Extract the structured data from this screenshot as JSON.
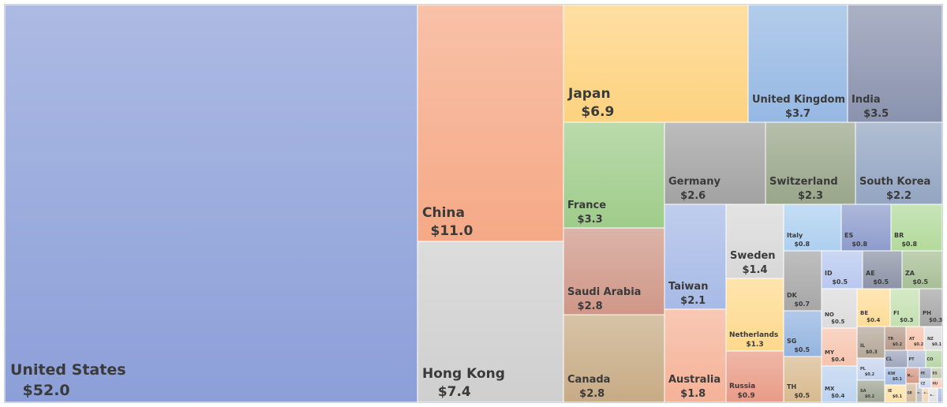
{
  "chart_data": {
    "type": "treemap",
    "title": "",
    "unit_prefix": "$",
    "items": [
      {
        "name": "United States",
        "value": 52.0,
        "label": "$52.0",
        "color": "#8c9fd8"
      },
      {
        "name": "China",
        "value": 11.0,
        "label": "$11.0",
        "color": "#f5a986"
      },
      {
        "name": "Hong Kong",
        "value": 7.4,
        "label": "$7.4",
        "color": "#cfcfcf"
      },
      {
        "name": "Japan",
        "value": 6.9,
        "label": "$6.9",
        "color": "#fdd27f"
      },
      {
        "name": "United Kingdom",
        "value": 3.7,
        "label": "$3.7",
        "color": "#95b8e3"
      },
      {
        "name": "India",
        "value": 3.5,
        "label": "$3.5",
        "color": "#8a93ae"
      },
      {
        "name": "France",
        "value": 3.3,
        "label": "$3.3",
        "color": "#9fcc8a"
      },
      {
        "name": "Saudi Arabia",
        "value": 2.8,
        "label": "$2.8",
        "color": "#cf9788"
      },
      {
        "name": "Canada",
        "value": 2.8,
        "label": "$2.8",
        "color": "#c7ab85"
      },
      {
        "name": "Germany",
        "value": 2.6,
        "label": "$2.6",
        "color": "#a2a2a2"
      },
      {
        "name": "Switzerland",
        "value": 2.3,
        "label": "$2.3",
        "color": "#99a68a"
      },
      {
        "name": "South Korea",
        "value": 2.2,
        "label": "$2.2",
        "color": "#93a5c2"
      },
      {
        "name": "Taiwan",
        "value": 2.1,
        "label": "$2.1",
        "color": "#a7bae6"
      },
      {
        "name": "Australia",
        "value": 1.8,
        "label": "$1.8",
        "color": "#f5b297"
      },
      {
        "name": "Sweden",
        "value": 1.4,
        "label": "$1.4",
        "color": "#d8d8d8"
      },
      {
        "name": "Netherlands",
        "value": 1.3,
        "label": "$1.3",
        "color": "#fdd98d"
      },
      {
        "name": "Russia",
        "value": 0.9,
        "label": "$0.9",
        "color": "#e99b86"
      },
      {
        "name": "Italy",
        "value": 0.8,
        "label": "$0.8",
        "color": "#add0f0"
      },
      {
        "name": "ES",
        "value": 0.8,
        "label": "$0.8",
        "color": "#8e9ccc"
      },
      {
        "name": "BR",
        "value": 0.8,
        "label": "$0.8",
        "color": "#b3da9c"
      },
      {
        "name": "DK",
        "value": 0.7,
        "label": "$0.7",
        "color": "#a6a6a6"
      },
      {
        "name": "ID",
        "value": 0.5,
        "label": "$0.5",
        "color": "#b8c8ef"
      },
      {
        "name": "AE",
        "value": 0.5,
        "label": "$0.5",
        "color": "#8d93a6"
      },
      {
        "name": "ZA",
        "value": 0.5,
        "label": "$0.5",
        "color": "#a7bf96"
      },
      {
        "name": "SG",
        "value": 0.5,
        "label": "$0.5",
        "color": "#94b4df"
      },
      {
        "name": "TH",
        "value": 0.5,
        "label": "$0.5",
        "color": "#d8ba8e"
      },
      {
        "name": "NO",
        "value": 0.5,
        "label": "$0.5",
        "color": "#dcdcdc"
      },
      {
        "name": "BE",
        "value": 0.4,
        "label": "$0.4",
        "color": "#fddc98"
      },
      {
        "name": "FI",
        "value": 0.3,
        "label": "$0.3",
        "color": "#c4e0b1"
      },
      {
        "name": "PH",
        "value": 0.3,
        "label": "$0.3",
        "color": "#a6a6a6"
      },
      {
        "name": "MY",
        "value": 0.4,
        "label": "$0.4",
        "color": "#f7c4ae"
      },
      {
        "name": "MX",
        "value": 0.4,
        "label": "$0.4",
        "color": "#bcd3ef"
      },
      {
        "name": "IL",
        "value": 0.3,
        "label": "$0.3",
        "color": "#b4a798"
      },
      {
        "name": "TR",
        "value": 0.2,
        "label": "$0.2",
        "color": "#b59b8a"
      },
      {
        "name": "AT",
        "value": 0.2,
        "label": "$0.2",
        "color": "#f6c2aa"
      },
      {
        "name": "NZ",
        "value": 0.1,
        "label": "$0.1",
        "color": "#dedede"
      },
      {
        "name": "PL",
        "value": 0.2,
        "label": "$0.2",
        "color": "#c6d4ef"
      },
      {
        "name": "CL",
        "value": null,
        "label": "",
        "color": "#9ea6bd"
      },
      {
        "name": "PT",
        "value": null,
        "label": "",
        "color": "#b6c1d8"
      },
      {
        "name": "CO",
        "value": null,
        "label": "",
        "color": "#b8d6a8"
      },
      {
        "name": "KW",
        "value": 0.1,
        "label": "$0.1",
        "color": "#a4bbe0"
      },
      {
        "name": "M...",
        "value": null,
        "label": "",
        "color": "#d59a86"
      },
      {
        "name": "PE",
        "value": null,
        "label": "",
        "color": "#a7b1c9"
      },
      {
        "name": "EG",
        "value": null,
        "label": "",
        "color": "#c2ccb0"
      },
      {
        "name": "SA",
        "value": 0.2,
        "label": "$0.2",
        "color": "#9ea593"
      },
      {
        "name": "IE",
        "value": 0.1,
        "label": "$0.1",
        "color": "#fde2a8"
      },
      {
        "name": "GR",
        "value": null,
        "label": "",
        "color": "#d2b99a"
      },
      {
        "name": "P...",
        "value": null,
        "label": "",
        "color": "#bfbfbf"
      },
      {
        "name": "A...",
        "value": null,
        "label": "",
        "color": "#f2d7b8"
      },
      {
        "name": "CZ",
        "value": null,
        "label": "",
        "color": "#cfd8ee"
      },
      {
        "name": "HU",
        "value": null,
        "label": "",
        "color": "#f7cdbb"
      },
      {
        "name": "B...",
        "value": null,
        "label": "",
        "color": "#e3e3e3"
      },
      {
        "name": "",
        "value": null,
        "label": "",
        "color": "#a9b8e3"
      }
    ]
  }
}
